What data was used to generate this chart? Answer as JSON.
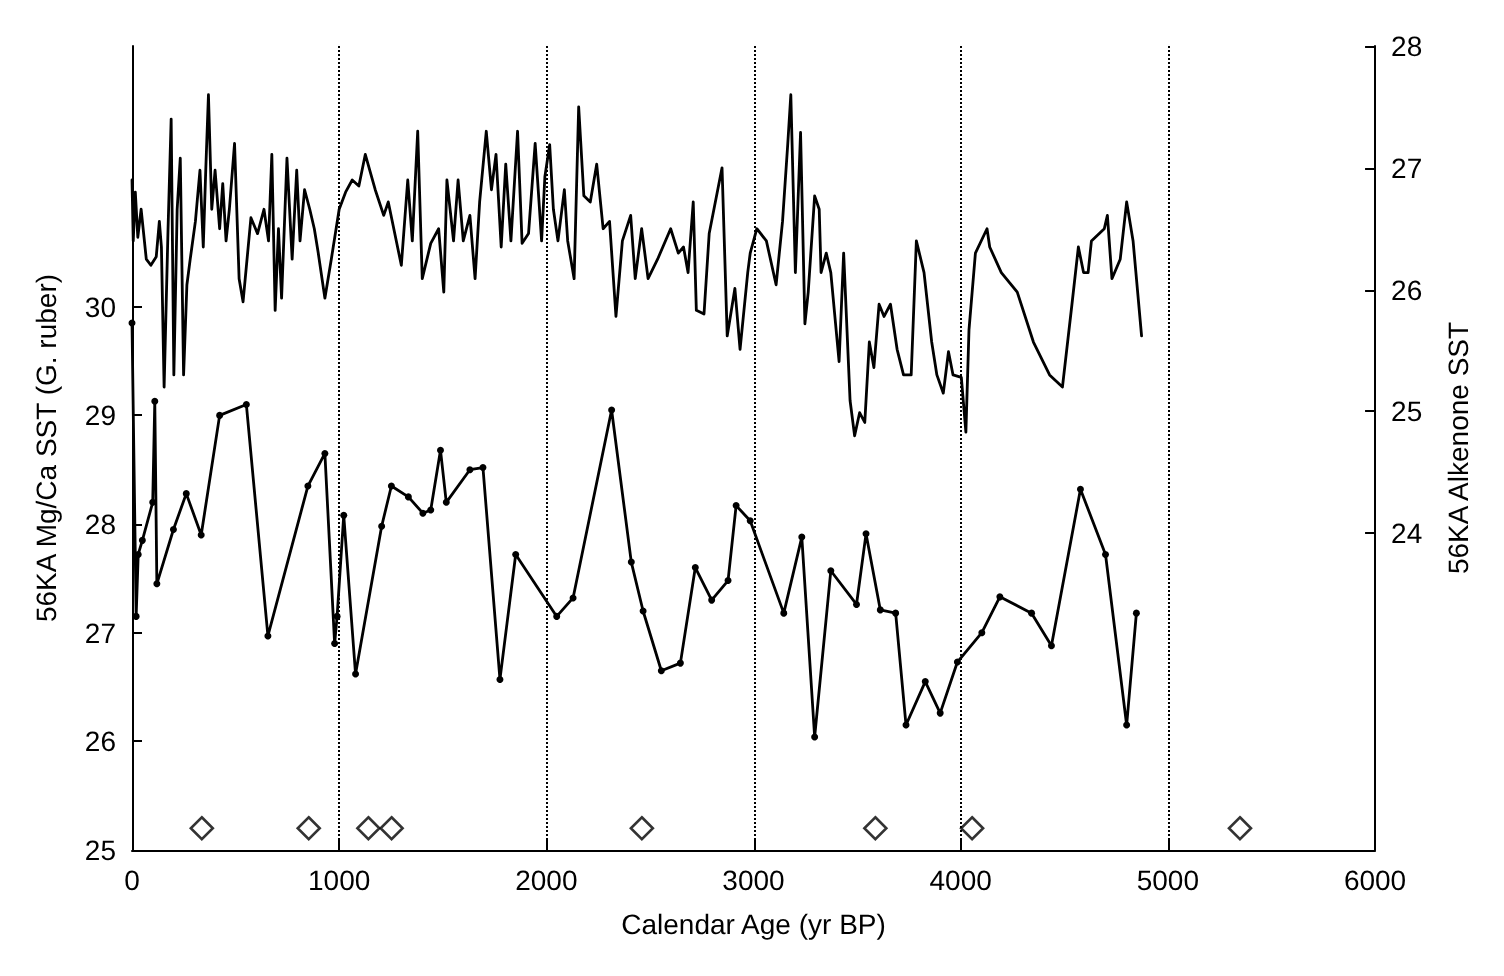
{
  "chart_data": {
    "type": "line",
    "xlabel": "Calendar Age (yr BP)",
    "ylabel": "56KA Mg/Ca SST (G. ruber)",
    "y2label": "56KA Alkenone SST",
    "xlim": [
      0,
      6000
    ],
    "xticks": [
      0,
      1000,
      2000,
      3000,
      4000,
      5000,
      6000
    ],
    "ylim": [
      25,
      32.4
    ],
    "yticks": [
      25,
      26,
      27,
      28,
      29,
      30
    ],
    "y2lim": [
      21.4,
      28
    ],
    "y2ticks": [
      24,
      25,
      26,
      27,
      28
    ],
    "grid": "x",
    "series": [
      {
        "axis": "y2",
        "color": "#000000",
        "marker": "none",
        "line_style": "solid",
        "x": [
          0,
          6,
          16,
          28,
          44,
          69,
          91,
          117,
          132,
          142,
          155,
          174,
          189,
          202,
          218,
          233,
          249,
          265,
          281,
          306,
          328,
          344,
          356,
          369,
          385,
          401,
          423,
          438,
          454,
          470,
          495,
          517,
          536,
          574,
          606,
          637,
          659,
          675,
          691,
          707,
          722,
          748,
          773,
          795,
          811,
          833,
          858,
          880,
          899,
          931,
          962,
          1000,
          1031,
          1063,
          1095,
          1126,
          1174,
          1215,
          1237,
          1300,
          1331,
          1353,
          1379,
          1401,
          1442,
          1480,
          1505,
          1520,
          1552,
          1574,
          1599,
          1631,
          1656,
          1678,
          1710,
          1735,
          1757,
          1782,
          1804,
          1829,
          1861,
          1883,
          1914,
          1946,
          1977,
          1993,
          2016,
          2034,
          2056,
          2087,
          2103,
          2134,
          2156,
          2181,
          2212,
          2243,
          2274,
          2305,
          2336,
          2367,
          2407,
          2429,
          2460,
          2491,
          2537,
          2600,
          2637,
          2662,
          2684,
          2709,
          2724,
          2761,
          2786,
          2848,
          2873,
          2910,
          2935,
          2972,
          2984,
          3016,
          3062,
          3109,
          3140,
          3165,
          3180,
          3202,
          3227,
          3248,
          3264,
          3295,
          3317,
          3326,
          3351,
          3373,
          3413,
          3435,
          3466,
          3488,
          3512,
          3537,
          3559,
          3581,
          3606,
          3630,
          3661,
          3693,
          3724,
          3761,
          3786,
          3823,
          3860,
          3885,
          3916,
          3941,
          3963,
          4003,
          4025,
          4040,
          4071,
          4127,
          4140,
          4196,
          4273,
          4351,
          4429,
          4491,
          4537,
          4568,
          4593,
          4615,
          4631,
          4693,
          4708,
          4730,
          4770,
          4801,
          4832,
          4873
        ],
        "values": [
          26.9,
          26.4,
          26.8,
          26.43,
          26.66,
          26.25,
          26.2,
          26.27,
          26.56,
          26.35,
          25.2,
          26.5,
          27.4,
          25.3,
          26.66,
          27.08,
          25.3,
          26.04,
          26.25,
          26.56,
          26.98,
          26.35,
          26.98,
          27.6,
          26.66,
          26.98,
          26.5,
          26.87,
          26.4,
          26.66,
          27.2,
          26.09,
          25.9,
          26.59,
          26.46,
          26.66,
          26.4,
          27.11,
          25.83,
          26.5,
          25.93,
          27.08,
          26.25,
          26.98,
          26.4,
          26.82,
          26.66,
          26.5,
          26.3,
          25.93,
          26.25,
          26.66,
          26.8,
          26.9,
          26.85,
          27.11,
          26.82,
          26.61,
          26.72,
          26.2,
          26.9,
          26.4,
          27.3,
          26.09,
          26.38,
          26.5,
          25.98,
          26.9,
          26.4,
          26.9,
          26.4,
          26.61,
          26.09,
          26.72,
          27.3,
          26.82,
          27.11,
          26.35,
          27.03,
          26.4,
          27.3,
          26.38,
          26.46,
          27.2,
          26.4,
          26.93,
          27.19,
          26.66,
          26.4,
          26.82,
          26.4,
          26.09,
          27.5,
          26.77,
          26.72,
          27.03,
          26.5,
          26.56,
          25.78,
          26.4,
          26.61,
          26.09,
          26.5,
          26.09,
          26.25,
          26.5,
          26.3,
          26.35,
          26.14,
          26.72,
          25.83,
          25.8,
          26.46,
          27.0,
          25.62,
          26.01,
          25.51,
          26.14,
          26.3,
          26.5,
          26.4,
          26.04,
          26.56,
          27.19,
          27.6,
          26.14,
          27.29,
          25.72,
          25.98,
          26.77,
          26.66,
          26.14,
          26.3,
          26.14,
          25.41,
          26.3,
          25.09,
          24.8,
          24.99,
          24.91,
          25.57,
          25.36,
          25.88,
          25.78,
          25.88,
          25.51,
          25.3,
          25.3,
          26.4,
          26.14,
          25.57,
          25.3,
          25.15,
          25.49,
          25.3,
          25.28,
          24.83,
          25.67,
          26.3,
          26.5,
          26.35,
          26.14,
          25.98,
          25.57,
          25.3,
          25.2,
          25.88,
          26.35,
          26.14,
          26.14,
          26.4,
          26.5,
          26.61,
          26.09,
          26.25,
          26.72,
          26.4,
          25.62
        ]
      },
      {
        "color": "#000000",
        "marker": "circle",
        "line_style": "solid",
        "x": [
          0,
          20,
          30,
          50,
          100,
          110,
          120,
          200,
          262,
          334,
          423,
          552,
          656,
          849,
          931,
          978,
          990,
          1022,
          1079,
          1205,
          1252,
          1334,
          1404,
          1442,
          1489,
          1517,
          1631,
          1694,
          1776,
          1852,
          2050,
          2129,
          2315,
          2410,
          2467,
          2555,
          2647,
          2719,
          2798,
          2877,
          2916,
          2984,
          3146,
          3233,
          3295,
          3373,
          3497,
          3543,
          3612,
          3686,
          3736,
          3829,
          3901,
          3984,
          4102,
          4189,
          4342,
          4438,
          4578,
          4699,
          4801,
          4848
        ],
        "values": [
          29.85,
          27.15,
          27.72,
          27.85,
          28.2,
          29.13,
          27.45,
          27.95,
          28.28,
          27.9,
          29.0,
          29.1,
          26.97,
          28.35,
          28.65,
          26.9,
          27.15,
          28.08,
          26.62,
          27.98,
          28.35,
          28.25,
          28.1,
          28.13,
          28.68,
          28.2,
          28.5,
          28.52,
          26.57,
          27.72,
          27.15,
          27.32,
          29.05,
          27.65,
          27.2,
          26.65,
          26.72,
          27.6,
          27.3,
          27.48,
          28.17,
          28.03,
          27.18,
          27.88,
          26.04,
          27.57,
          27.26,
          27.91,
          27.21,
          27.18,
          26.15,
          26.55,
          26.26,
          26.73,
          27.0,
          27.33,
          27.18,
          26.88,
          28.32,
          27.72,
          26.15,
          27.18
        ]
      },
      {
        "type": "scatter",
        "color": "#000000",
        "marker": "diamond",
        "x": [
          337,
          853,
          1141,
          1253,
          2461,
          3588,
          4055,
          5348
        ],
        "values": [
          25.2,
          25.2,
          25.2,
          25.2,
          25.2,
          25.2,
          25.2,
          25.2
        ]
      }
    ]
  }
}
